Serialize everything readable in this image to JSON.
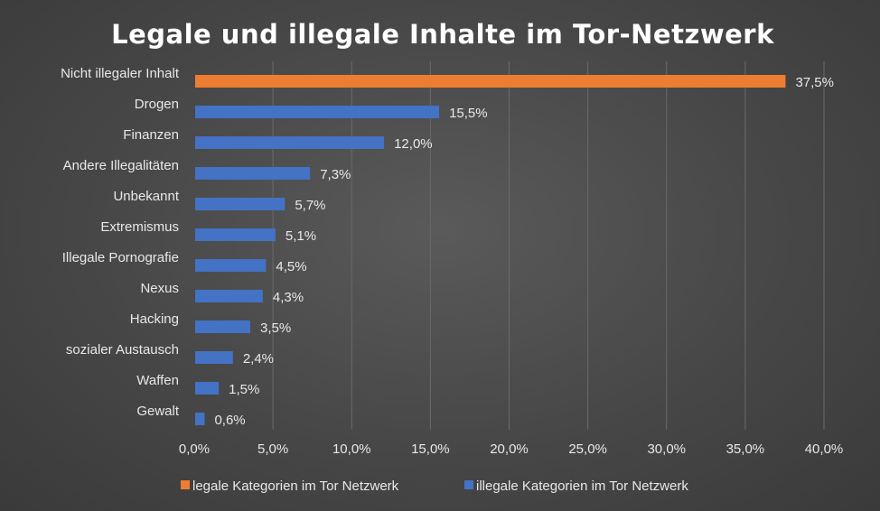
{
  "chart_data": {
    "type": "bar",
    "orientation": "horizontal",
    "title": "Legale und illegale Inhalte im Tor-Netzwerk",
    "categories": [
      "Nicht illegaler Inhalt",
      "Drogen",
      "Finanzen",
      "Andere Illegalitäten",
      "Unbekannt",
      "Extremismus",
      "Illegale Pornografie",
      "Nexus",
      "Hacking",
      "sozialer Austausch",
      "Waffen",
      "Gewalt"
    ],
    "series": [
      {
        "name": "legale Kategorien im Tor Netzwerk",
        "color": "#ed7d31",
        "values": [
          37.5,
          null,
          null,
          null,
          null,
          null,
          null,
          null,
          null,
          null,
          null,
          null
        ]
      },
      {
        "name": "illegale Kategorien im Tor Netzwerk",
        "color": "#4472c4",
        "values": [
          null,
          15.5,
          12.0,
          7.3,
          5.7,
          5.1,
          4.5,
          4.3,
          3.5,
          2.4,
          1.5,
          0.6
        ]
      }
    ],
    "data_labels": [
      "37,5%",
      "15,5%",
      "12,0%",
      "7,3%",
      "5,7%",
      "5,1%",
      "4,5%",
      "4,3%",
      "3,5%",
      "2,4%",
      "1,5%",
      "0,6%"
    ],
    "xlim": [
      0,
      40
    ],
    "xticks": [
      0,
      5,
      10,
      15,
      20,
      25,
      30,
      35,
      40
    ],
    "xtick_labels": [
      "0,0%",
      "5,0%",
      "10,0%",
      "15,0%",
      "20,0%",
      "25,0%",
      "30,0%",
      "35,0%",
      "40,0%"
    ],
    "grid": true,
    "legend_position": "bottom"
  }
}
